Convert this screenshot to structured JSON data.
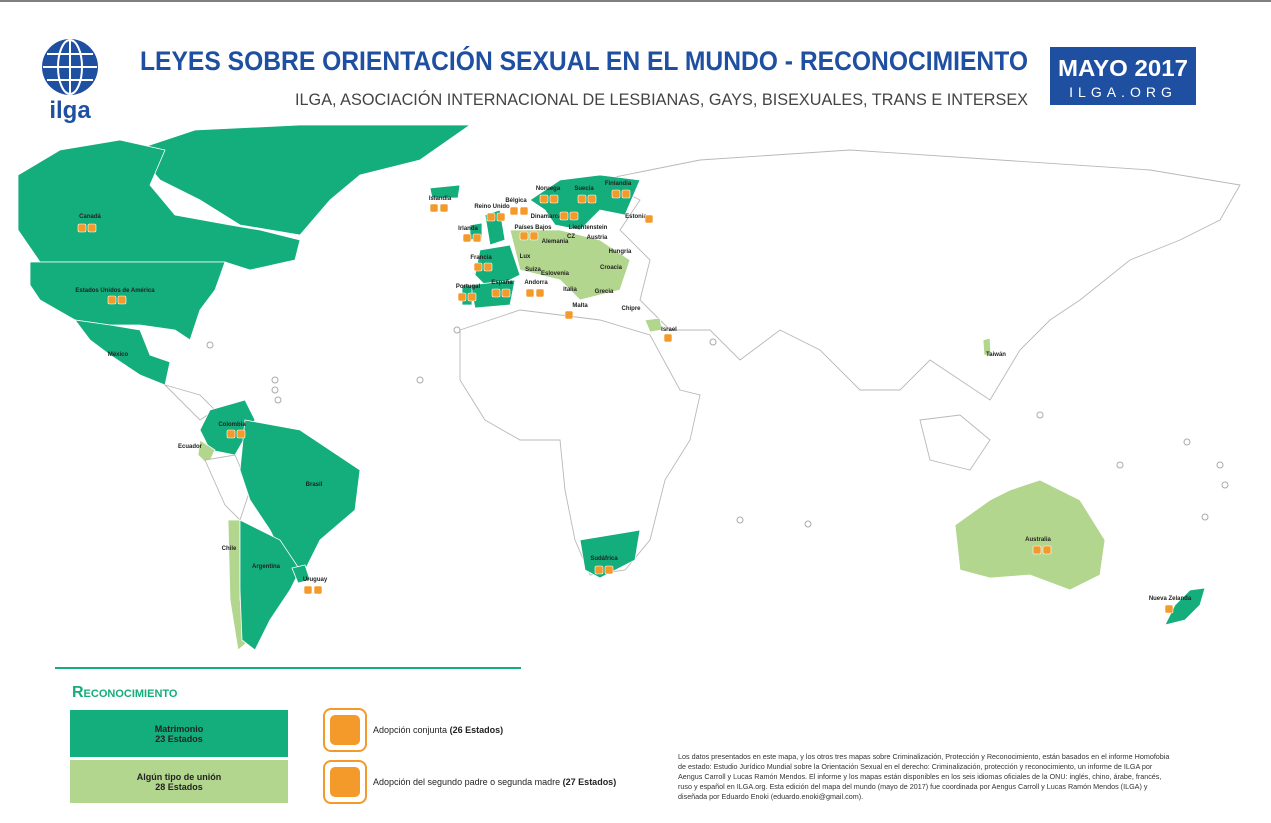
{
  "header": {
    "logo": "ilga",
    "title": "LEYES SOBRE ORIENTACIÓN SEXUAL EN EL MUNDO - RECONOCIMIENTO",
    "subtitle": "ILGA, ASOCIACIÓN INTERNACIONAL DE LESBIANAS, GAYS, BISEXUALES, TRANS E INTERSEX",
    "date": "MAYO 2017",
    "site": "ILGA.ORG"
  },
  "countries": [
    "Canadá",
    "Estados Unidos de América",
    "México",
    "Colombia",
    "Ecuador",
    "Brasil",
    "Chile",
    "Argentina",
    "Uruguay",
    "Islandia",
    "Irlanda",
    "Reino Unido",
    "Bélgica",
    "Noruega",
    "Suecia",
    "Finlandia",
    "Estonia",
    "Dinamarca",
    "Países Bajos",
    "Liechtenstein",
    "Alemania",
    "Austria",
    "Hungría",
    "Francia",
    "Lux",
    "CZ",
    "Suiza",
    "Eslovenia",
    "Croacia",
    "Portugal",
    "España",
    "Andorra",
    "Italia",
    "Grecia",
    "Malta",
    "Chipre",
    "Israel",
    "Sudáfrica",
    "Taiwán",
    "Australia",
    "Nueva Zelanda"
  ],
  "legend": {
    "title": "Reconocimiento",
    "categories": [
      {
        "label": "Matrimonio",
        "count": "23 Estados"
      },
      {
        "label": "Algún tipo de unión",
        "count": "28 Estados"
      }
    ],
    "icons": [
      {
        "label": "Adopción conjunta",
        "count": "(26 Estados)"
      },
      {
        "label": "Adopción del segundo padre o segunda madre",
        "count": "(27 Estados)"
      }
    ]
  },
  "footnote": "Los datos presentados en este mapa, y los otros tres mapas sobre Criminalización, Protección y Reconocimiento, están basados en el informe Homofobia de estado: Estudio Jurídico Mundial sobre la Orientación Sexual en el derecho: Criminalización, protección y reconocimiento, un informe de ILGA por Aengus Carroll y Lucas Ramón Mendos. El informe y los mapas están disponibles en los seis idiomas oficiales de la ONU: inglés, chino, árabe, francés, ruso y español en ILGA.org. Esta edición del mapa del mundo (mayo de 2017) fue coordinada por Aengus Carroll y Lucas Ramón Mendos (ILGA) y diseñada por Eduardo Enoki (eduardo.enoki@gmail.com)."
}
